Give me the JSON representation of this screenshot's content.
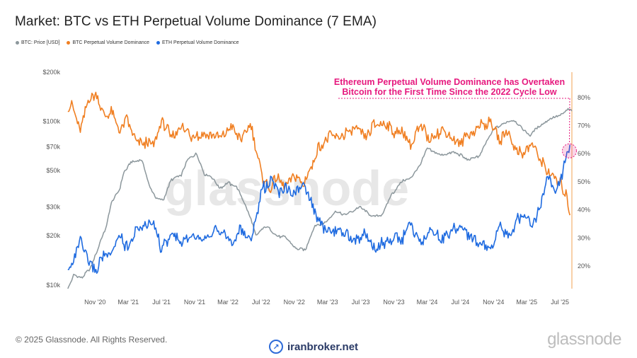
{
  "title": "Market: BTC vs ETH Perpetual Volume Dominance (7 EMA)",
  "legend": [
    {
      "label": "BTC: Price [USD]",
      "color": "#8c979c"
    },
    {
      "label": "BTC Perpetual Volume Dominance",
      "color": "#f07f22"
    },
    {
      "label": "ETH Perpetual Volume Dominance",
      "color": "#1f6be0"
    }
  ],
  "watermark": "glassnode",
  "annotation": {
    "line1": "Ethereum Perpetual Volume Dominance has Overtaken",
    "line2": "Bitcoin for the First Time Since the 2022 Cycle Low",
    "color": "#e6197e"
  },
  "footer": {
    "copyright": "© 2025 Glassnode. All Rights Reserved.",
    "brand": "glassnode",
    "site": "iranbroker.net"
  },
  "chart_data": {
    "type": "line",
    "title": "Market: BTC vs ETH Perpetual Volume Dominance (7 EMA)",
    "x_range": [
      2020.54,
      2025.62
    ],
    "x_ticks": [
      {
        "label": "Nov '20",
        "t": 2020.833
      },
      {
        "label": "Mar '21",
        "t": 2021.167
      },
      {
        "label": "Jul '21",
        "t": 2021.5
      },
      {
        "label": "Nov '21",
        "t": 2021.833
      },
      {
        "label": "Mar '22",
        "t": 2022.167
      },
      {
        "label": "Jul '22",
        "t": 2022.5
      },
      {
        "label": "Nov '22",
        "t": 2022.833
      },
      {
        "label": "Mar '23",
        "t": 2023.167
      },
      {
        "label": "Jul '23",
        "t": 2023.5
      },
      {
        "label": "Nov '23",
        "t": 2023.833
      },
      {
        "label": "Mar '24",
        "t": 2024.167
      },
      {
        "label": "Jul '24",
        "t": 2024.5
      },
      {
        "label": "Nov '24",
        "t": 2024.833
      },
      {
        "label": "Mar '25",
        "t": 2025.167
      },
      {
        "label": "Jul '25",
        "t": 2025.5
      }
    ],
    "y_left": {
      "scale": "log",
      "range": [
        9500,
        200000
      ],
      "ticks": [
        {
          "label": "$10k",
          "v": 10000
        },
        {
          "label": "$20k",
          "v": 20000
        },
        {
          "label": "$30k",
          "v": 30000
        },
        {
          "label": "$50k",
          "v": 50000
        },
        {
          "label": "$70k",
          "v": 70000
        },
        {
          "label": "$100k",
          "v": 100000
        },
        {
          "label": "$200k",
          "v": 200000
        }
      ]
    },
    "y_right": {
      "scale": "linear",
      "range": [
        12,
        89
      ],
      "ticks": [
        {
          "label": "20%",
          "v": 20
        },
        {
          "label": "30%",
          "v": 30
        },
        {
          "label": "40%",
          "v": 40
        },
        {
          "label": "50%",
          "v": 50
        },
        {
          "label": "60%",
          "v": 60
        },
        {
          "label": "70%",
          "v": 70
        },
        {
          "label": "80%",
          "v": 80
        }
      ]
    },
    "series": [
      {
        "name": "BTC: Price [USD]",
        "axis": "left",
        "color": "#8c979c",
        "points": [
          [
            2020.56,
            9500
          ],
          [
            2020.62,
            11500
          ],
          [
            2020.7,
            11000
          ],
          [
            2020.8,
            13000
          ],
          [
            2020.86,
            16500
          ],
          [
            2020.95,
            23000
          ],
          [
            2021.0,
            32000
          ],
          [
            2021.08,
            38000
          ],
          [
            2021.12,
            48000
          ],
          [
            2021.2,
            57000
          ],
          [
            2021.3,
            58000
          ],
          [
            2021.38,
            40000
          ],
          [
            2021.45,
            34000
          ],
          [
            2021.52,
            33000
          ],
          [
            2021.6,
            44000
          ],
          [
            2021.7,
            47000
          ],
          [
            2021.76,
            58000
          ],
          [
            2021.85,
            64000
          ],
          [
            2021.93,
            48000
          ],
          [
            2022.0,
            46000
          ],
          [
            2022.08,
            39000
          ],
          [
            2022.17,
            42000
          ],
          [
            2022.25,
            40000
          ],
          [
            2022.35,
            30000
          ],
          [
            2022.45,
            20000
          ],
          [
            2022.55,
            23000
          ],
          [
            2022.65,
            20000
          ],
          [
            2022.75,
            19500
          ],
          [
            2022.85,
            16800
          ],
          [
            2022.95,
            16500
          ],
          [
            2023.04,
            23000
          ],
          [
            2023.15,
            24000
          ],
          [
            2023.25,
            28000
          ],
          [
            2023.35,
            27000
          ],
          [
            2023.5,
            30000
          ],
          [
            2023.62,
            26000
          ],
          [
            2023.72,
            27000
          ],
          [
            2023.8,
            35000
          ],
          [
            2023.92,
            43000
          ],
          [
            2024.0,
            45000
          ],
          [
            2024.08,
            52000
          ],
          [
            2024.17,
            68000
          ],
          [
            2024.3,
            62000
          ],
          [
            2024.45,
            65000
          ],
          [
            2024.58,
            58000
          ],
          [
            2024.7,
            62000
          ],
          [
            2024.84,
            90000
          ],
          [
            2024.95,
            98000
          ],
          [
            2025.04,
            102000
          ],
          [
            2025.12,
            90000
          ],
          [
            2025.2,
            82000
          ],
          [
            2025.3,
            95000
          ],
          [
            2025.42,
            105000
          ],
          [
            2025.5,
            108000
          ],
          [
            2025.58,
            118000
          ],
          [
            2025.62,
            116000
          ]
        ]
      },
      {
        "name": "BTC Perpetual Volume Dominance",
        "axis": "right",
        "color": "#f07f22",
        "points": [
          [
            2020.56,
            77
          ],
          [
            2020.62,
            76
          ],
          [
            2020.68,
            69
          ],
          [
            2020.76,
            78
          ],
          [
            2020.84,
            82
          ],
          [
            2020.92,
            74
          ],
          [
            2021.0,
            75
          ],
          [
            2021.08,
            67
          ],
          [
            2021.16,
            72
          ],
          [
            2021.25,
            63
          ],
          [
            2021.33,
            64
          ],
          [
            2021.42,
            62
          ],
          [
            2021.5,
            72
          ],
          [
            2021.6,
            66
          ],
          [
            2021.7,
            70
          ],
          [
            2021.8,
            66
          ],
          [
            2021.92,
            67
          ],
          [
            2022.0,
            66
          ],
          [
            2022.1,
            65
          ],
          [
            2022.2,
            70
          ],
          [
            2022.3,
            65
          ],
          [
            2022.4,
            70
          ],
          [
            2022.5,
            53
          ],
          [
            2022.58,
            47
          ],
          [
            2022.66,
            52
          ],
          [
            2022.74,
            49
          ],
          [
            2022.84,
            53
          ],
          [
            2022.92,
            49
          ],
          [
            2023.0,
            55
          ],
          [
            2023.08,
            62
          ],
          [
            2023.16,
            66
          ],
          [
            2023.25,
            65
          ],
          [
            2023.35,
            67
          ],
          [
            2023.45,
            69
          ],
          [
            2023.55,
            66
          ],
          [
            2023.65,
            71
          ],
          [
            2023.75,
            70
          ],
          [
            2023.85,
            67
          ],
          [
            2023.92,
            68
          ],
          [
            2024.0,
            63
          ],
          [
            2024.1,
            70
          ],
          [
            2024.2,
            65
          ],
          [
            2024.3,
            68
          ],
          [
            2024.4,
            66
          ],
          [
            2024.5,
            64
          ],
          [
            2024.6,
            67
          ],
          [
            2024.7,
            70
          ],
          [
            2024.8,
            72
          ],
          [
            2024.9,
            64
          ],
          [
            2024.98,
            68
          ],
          [
            2025.06,
            62
          ],
          [
            2025.15,
            60
          ],
          [
            2025.22,
            64
          ],
          [
            2025.3,
            58
          ],
          [
            2025.4,
            52
          ],
          [
            2025.5,
            49
          ],
          [
            2025.56,
            45
          ],
          [
            2025.6,
            38
          ]
        ]
      },
      {
        "name": "ETH Perpetual Volume Dominance",
        "axis": "right",
        "color": "#1f6be0",
        "points": [
          [
            2020.56,
            19
          ],
          [
            2020.62,
            22
          ],
          [
            2020.68,
            29
          ],
          [
            2020.76,
            22
          ],
          [
            2020.84,
            18
          ],
          [
            2020.92,
            25
          ],
          [
            2021.0,
            24
          ],
          [
            2021.08,
            31
          ],
          [
            2021.16,
            26
          ],
          [
            2021.25,
            34
          ],
          [
            2021.33,
            34
          ],
          [
            2021.42,
            36
          ],
          [
            2021.5,
            26
          ],
          [
            2021.6,
            32
          ],
          [
            2021.7,
            28
          ],
          [
            2021.8,
            32
          ],
          [
            2021.92,
            31
          ],
          [
            2022.0,
            32
          ],
          [
            2022.1,
            33
          ],
          [
            2022.2,
            28
          ],
          [
            2022.3,
            33
          ],
          [
            2022.4,
            29
          ],
          [
            2022.5,
            46
          ],
          [
            2022.58,
            51
          ],
          [
            2022.66,
            46
          ],
          [
            2022.74,
            49
          ],
          [
            2022.84,
            45
          ],
          [
            2022.92,
            49
          ],
          [
            2023.0,
            43
          ],
          [
            2023.08,
            36
          ],
          [
            2023.16,
            32
          ],
          [
            2023.25,
            33
          ],
          [
            2023.35,
            31
          ],
          [
            2023.45,
            29
          ],
          [
            2023.55,
            32
          ],
          [
            2023.65,
            27
          ],
          [
            2023.75,
            28
          ],
          [
            2023.85,
            31
          ],
          [
            2023.92,
            30
          ],
          [
            2024.0,
            35
          ],
          [
            2024.1,
            28
          ],
          [
            2024.2,
            33
          ],
          [
            2024.3,
            30
          ],
          [
            2024.4,
            32
          ],
          [
            2024.5,
            34
          ],
          [
            2024.6,
            31
          ],
          [
            2024.7,
            28
          ],
          [
            2024.8,
            26
          ],
          [
            2024.9,
            34
          ],
          [
            2024.98,
            30
          ],
          [
            2025.06,
            36
          ],
          [
            2025.15,
            38
          ],
          [
            2025.22,
            34
          ],
          [
            2025.3,
            40
          ],
          [
            2025.38,
            52
          ],
          [
            2025.45,
            48
          ],
          [
            2025.5,
            50
          ],
          [
            2025.56,
            58
          ],
          [
            2025.6,
            62
          ]
        ]
      }
    ]
  }
}
